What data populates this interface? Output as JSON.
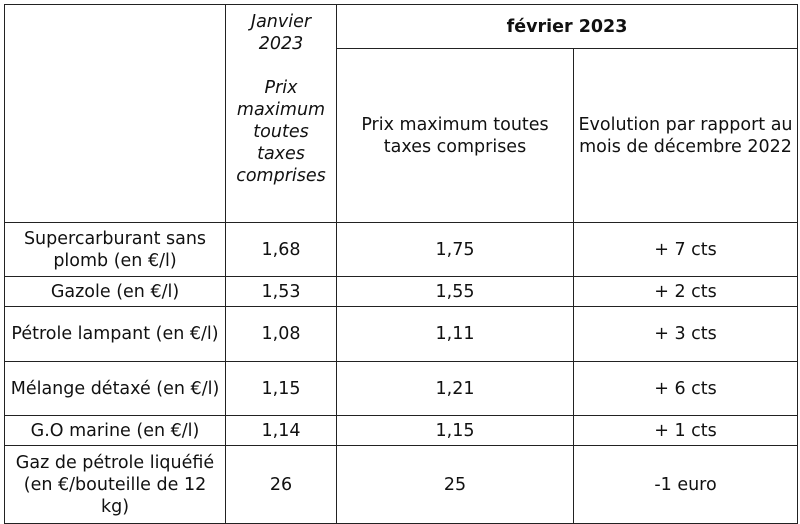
{
  "header": {
    "january_title": "Janvier 2023",
    "january_subtitle": "Prix maximum toutes taxes comprises",
    "february_title": "février 2023",
    "february_price_col": "Prix maximum toutes taxes comprises",
    "february_evolution_col": "Evolution par rapport au mois de décembre 2022"
  },
  "rows": [
    {
      "product": "Supercarburant sans plomb (en €/l)",
      "jan": "1,68",
      "feb": "1,75",
      "evolution": "+ 7 cts"
    },
    {
      "product": "Gazole (en €/l)",
      "jan": "1,53",
      "feb": "1,55",
      "evolution": "+ 2 cts"
    },
    {
      "product": "Pétrole lampant (en €/l)",
      "jan": "1,08",
      "feb": "1,11",
      "evolution": "+ 3 cts"
    },
    {
      "product": "Mélange détaxé (en €/l)",
      "jan": "1,15",
      "feb": "1,21",
      "evolution": "+ 6 cts"
    },
    {
      "product": "G.O marine (en €/l)",
      "jan": "1,14",
      "feb": "1,15",
      "evolution": "+ 1 cts"
    },
    {
      "product": "Gaz de pétrole liquéfié (en €/bouteille de 12 kg)",
      "jan": "26",
      "feb": "25",
      "evolution": "-1 euro"
    }
  ]
}
